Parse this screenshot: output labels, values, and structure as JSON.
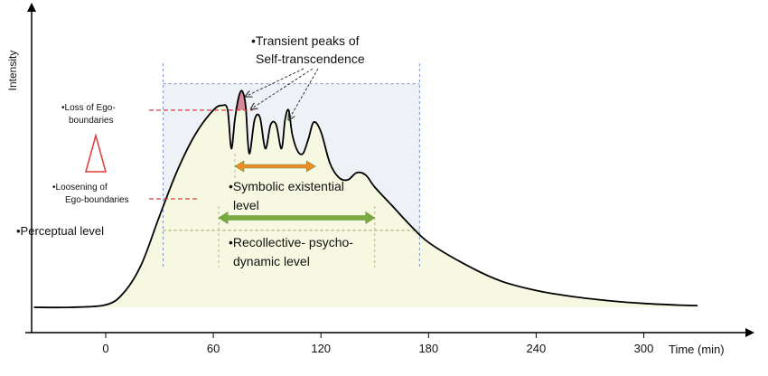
{
  "chart_data": {
    "type": "area",
    "title": "",
    "xlabel": "Time (min)",
    "ylabel": "Intensity",
    "xlim": [
      -40,
      330
    ],
    "ylim": [
      0,
      100
    ],
    "x_ticks": [
      0,
      60,
      120,
      180,
      240,
      300
    ],
    "grid": false,
    "series": [
      {
        "x": [
          -40,
          -20,
          0,
          10,
          20,
          30,
          40,
          50,
          60,
          65,
          68,
          70,
          72,
          74,
          76,
          78,
          80,
          83,
          86,
          89,
          92,
          95,
          98,
          100,
          102,
          104,
          107,
          110,
          113,
          116,
          120,
          125,
          130,
          135,
          140,
          145,
          150,
          160,
          170,
          180,
          200,
          220,
          240,
          260,
          280,
          300,
          320,
          330
        ],
        "values": [
          0,
          0,
          1,
          6,
          18,
          38,
          57,
          72,
          82,
          84,
          82,
          66,
          78,
          87,
          90,
          84,
          64,
          78,
          79,
          66,
          76,
          76,
          66,
          78,
          82,
          72,
          65,
          64,
          70,
          77,
          73,
          60,
          54,
          53,
          56,
          55,
          50,
          42,
          34,
          27,
          18,
          11,
          7,
          4.5,
          2.8,
          1.6,
          0.9,
          0.7
        ]
      }
    ],
    "levels": {
      "perceptual_lower": 32,
      "perceptual_upper": 93,
      "symbolic_lower": 93,
      "loss_of_ego": 82,
      "loosening_of_ego": 45
    },
    "region_bounds": {
      "outer_box_x": [
        32,
        175
      ],
      "green_arrow_x": [
        63,
        150
      ],
      "orange_arrow_x": [
        72,
        117
      ]
    },
    "annotations": {
      "transient_peaks_line1": "•Transient peaks of",
      "transient_peaks_line2": "Self-transcendence",
      "loss_ego_line1": "•Loss of Ego-",
      "loss_ego_line2": "boundaries",
      "loosening_line1": "•Loosening of",
      "loosening_line2": "Ego-boundaries",
      "perceptual": "•Perceptual level",
      "symbolic_line1": "•Symbolic existential",
      "symbolic_line2": "level",
      "recollective_line1": "•Recollective- psycho-",
      "recollective_line2": "dynamic level"
    },
    "colors": {
      "area_fill": "#f7f8e2",
      "curve": "#000000",
      "box_line": "#7b93c5",
      "box_fill": "#eef1f6",
      "dashed_red": "#e03a3a",
      "triangle": "#e03a3a",
      "peak_fill": "#d98a9a",
      "green_arrow": "#7aab3e",
      "orange_arrow": "#f08a24"
    }
  }
}
